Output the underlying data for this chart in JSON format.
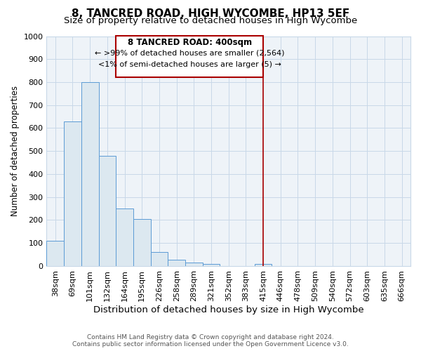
{
  "title": "8, TANCRED ROAD, HIGH WYCOMBE, HP13 5EF",
  "subtitle": "Size of property relative to detached houses in High Wycombe",
  "xlabel": "Distribution of detached houses by size in High Wycombe",
  "ylabel": "Number of detached properties",
  "bar_labels": [
    "38sqm",
    "69sqm",
    "101sqm",
    "132sqm",
    "164sqm",
    "195sqm",
    "226sqm",
    "258sqm",
    "289sqm",
    "321sqm",
    "352sqm",
    "383sqm",
    "415sqm",
    "446sqm",
    "478sqm",
    "509sqm",
    "540sqm",
    "572sqm",
    "603sqm",
    "635sqm",
    "666sqm"
  ],
  "bar_values": [
    110,
    628,
    800,
    478,
    250,
    205,
    62,
    28,
    15,
    10,
    0,
    0,
    8,
    0,
    0,
    0,
    0,
    0,
    0,
    0,
    0
  ],
  "bar_color": "#dce8f0",
  "bar_edge_color": "#5b9bd5",
  "vline_x": 12,
  "vline_color": "#aa0000",
  "ylim": [
    0,
    1000
  ],
  "yticks": [
    0,
    100,
    200,
    300,
    400,
    500,
    600,
    700,
    800,
    900,
    1000
  ],
  "annotation_title": "8 TANCRED ROAD: 400sqm",
  "annotation_line1": "← >99% of detached houses are smaller (2,564)",
  "annotation_line2": "<1% of semi-detached houses are larger (5) →",
  "annotation_box_color": "#ffffff",
  "annotation_box_edge": "#aa0000",
  "footer_line1": "Contains HM Land Registry data © Crown copyright and database right 2024.",
  "footer_line2": "Contains public sector information licensed under the Open Government Licence v3.0.",
  "background_color": "#ffffff",
  "plot_bg_color": "#eef3f8",
  "grid_color": "#c8d8e8",
  "title_fontsize": 11,
  "subtitle_fontsize": 9.5,
  "xlabel_fontsize": 9.5,
  "ylabel_fontsize": 8.5,
  "tick_fontsize": 8,
  "ann_fontsize_title": 8.5,
  "ann_fontsize_body": 8.0,
  "footer_fontsize": 6.5
}
